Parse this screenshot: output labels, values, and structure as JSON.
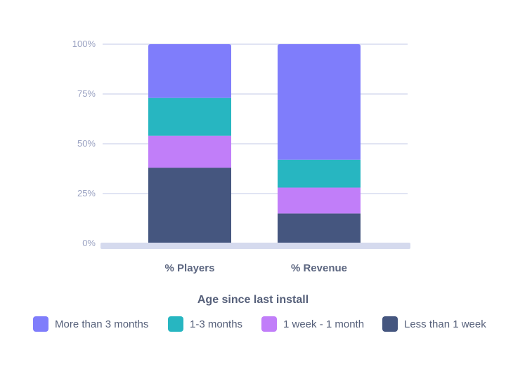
{
  "chart_data": {
    "type": "bar",
    "stacked": true,
    "categories": [
      "% Players",
      "% Revenue"
    ],
    "series": [
      {
        "name": "Less than 1 week",
        "color": "#45567f",
        "values": [
          38,
          15
        ]
      },
      {
        "name": "1 week - 1 month",
        "color": "#c17ef9",
        "values": [
          16,
          13
        ]
      },
      {
        "name": "1-3 months",
        "color": "#27b6c1",
        "values": [
          19,
          14
        ]
      },
      {
        "name": "More than 3 months",
        "color": "#7f7dfb",
        "values": [
          27,
          58
        ]
      }
    ],
    "legend_order": [
      "More than 3 months",
      "1-3 months",
      "1 week - 1 month",
      "Less than 1 week"
    ],
    "title": "",
    "xlabel": "",
    "ylabel": "",
    "legend_title": "Age since last install",
    "ylim": [
      0,
      100
    ],
    "yticks": [
      "0%",
      "25%",
      "50%",
      "75%",
      "100%"
    ],
    "ytick_values": [
      0,
      25,
      50,
      75,
      100
    ],
    "grid": true,
    "legend_placement": "bottom"
  }
}
